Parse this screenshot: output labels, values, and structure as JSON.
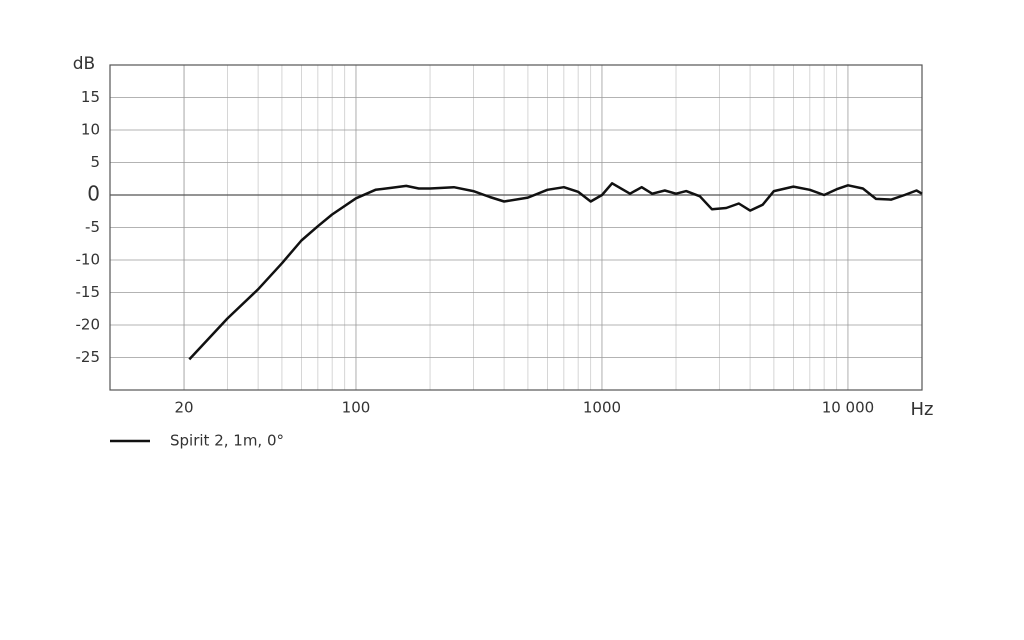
{
  "chart_data": {
    "type": "line",
    "x_scale": "log",
    "y_label": "dB",
    "x_label": "Hz",
    "xlim": [
      10,
      20000
    ],
    "xticks": [
      20,
      100,
      1000,
      {
        "value": 10000,
        "label": "10 000"
      }
    ],
    "x_minor_grid": [
      20,
      30,
      40,
      50,
      60,
      70,
      80,
      90,
      200,
      300,
      400,
      500,
      600,
      700,
      800,
      900,
      2000,
      3000,
      4000,
      5000,
      6000,
      7000,
      8000,
      9000
    ],
    "ylim": [
      -30,
      20
    ],
    "yticks": [
      -25,
      -20,
      -15,
      -10,
      -5,
      0,
      5,
      10,
      15
    ],
    "grid": true,
    "legend": "bottom-left",
    "x": [
      21,
      30,
      40,
      50,
      60,
      70,
      80,
      100,
      120,
      140,
      160,
      180,
      200,
      250,
      300,
      350,
      400,
      500,
      600,
      700,
      800,
      900,
      1000,
      1100,
      1300,
      1450,
      1600,
      1800,
      2000,
      2200,
      2500,
      2800,
      3200,
      3600,
      4000,
      4500,
      5000,
      6000,
      7000,
      8000,
      9000,
      10000,
      11500,
      13000,
      15000,
      17000,
      19000,
      20000
    ],
    "series": [
      {
        "name": "Spirit 2, 1m, 0°",
        "color": "#111111",
        "values": [
          -25.3,
          -19,
          -14.5,
          -10.5,
          -7,
          -4.8,
          -3,
          -0.5,
          0.8,
          1.1,
          1.4,
          1.0,
          1.0,
          1.2,
          0.6,
          -0.3,
          -1.0,
          -0.4,
          0.8,
          1.2,
          0.5,
          -1.0,
          0.0,
          1.8,
          0.2,
          1.2,
          0.2,
          0.7,
          0.2,
          0.6,
          -0.2,
          -2.2,
          -2.0,
          -1.3,
          -2.4,
          -1.5,
          0.6,
          1.3,
          0.8,
          0.0,
          0.9,
          1.5,
          1.0,
          -0.6,
          -0.7,
          0.0,
          0.7,
          0.2
        ]
      }
    ]
  }
}
